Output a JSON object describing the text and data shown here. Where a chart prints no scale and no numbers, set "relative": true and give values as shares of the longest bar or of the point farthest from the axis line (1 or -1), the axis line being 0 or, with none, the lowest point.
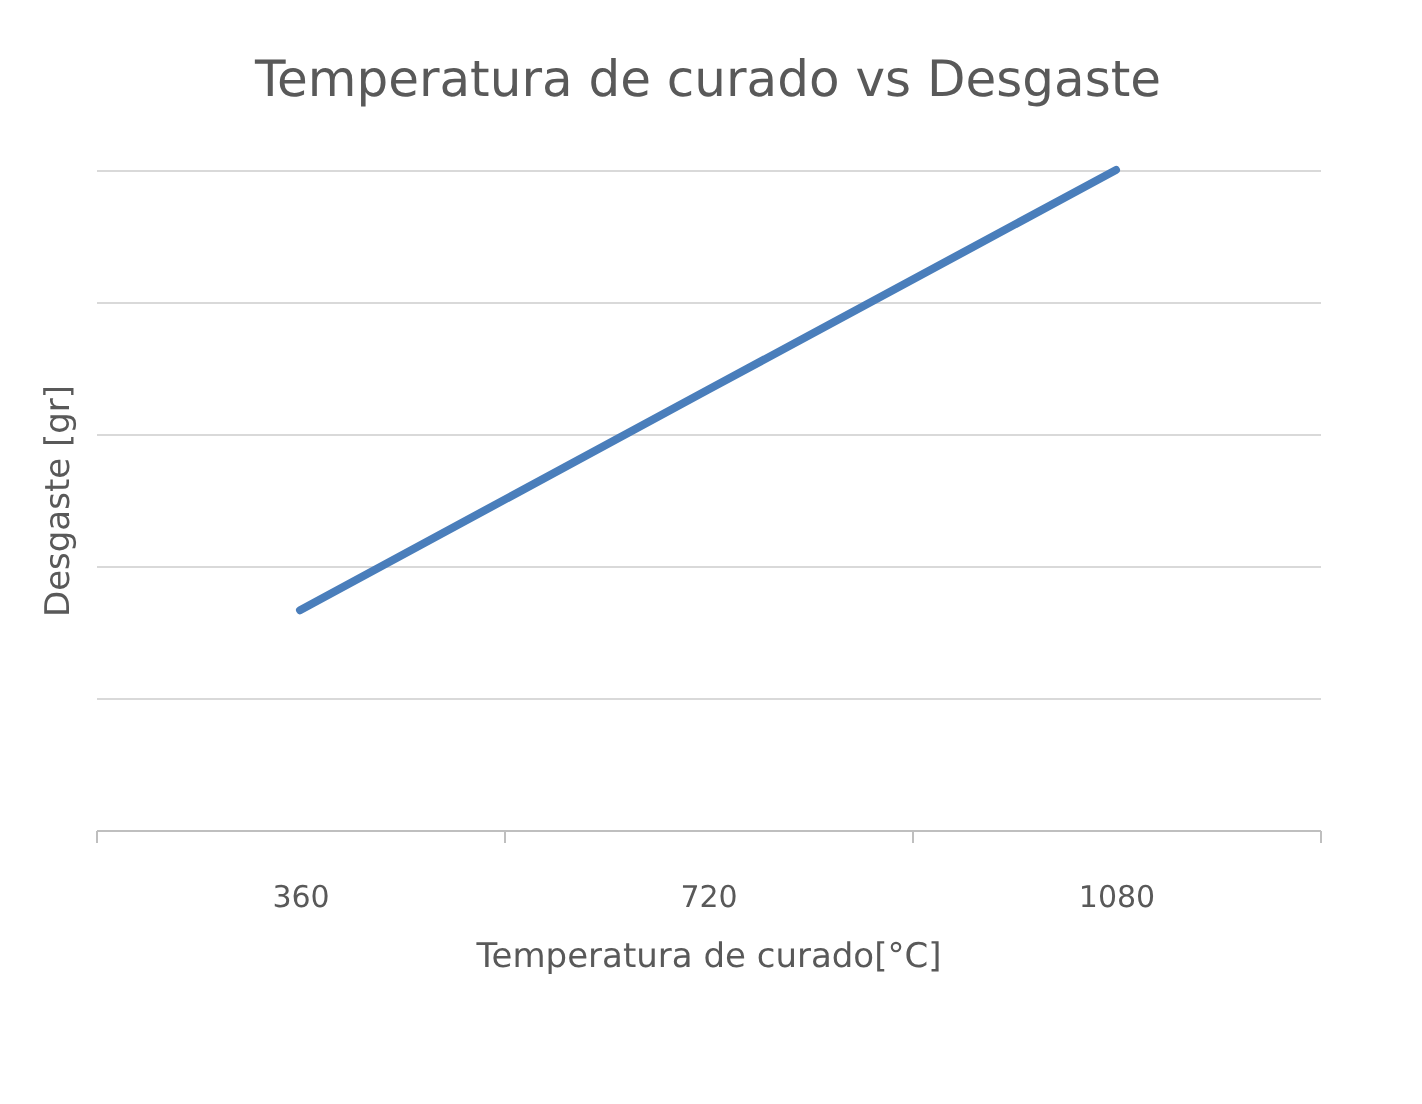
{
  "chart_data": {
    "type": "line",
    "title": "Temperatura de curado vs Desgaste",
    "xlabel": "Temperatura de curado[°C]",
    "ylabel": "Desgaste [gr]",
    "categories": [
      "360",
      "720",
      "1080"
    ],
    "series": [
      {
        "color": "#4a7ebb",
        "values": [
          0.333,
          0.667,
          1.0
        ]
      }
    ],
    "relative": true,
    "grid": "y",
    "marker": "none",
    "line_style": "solid"
  }
}
